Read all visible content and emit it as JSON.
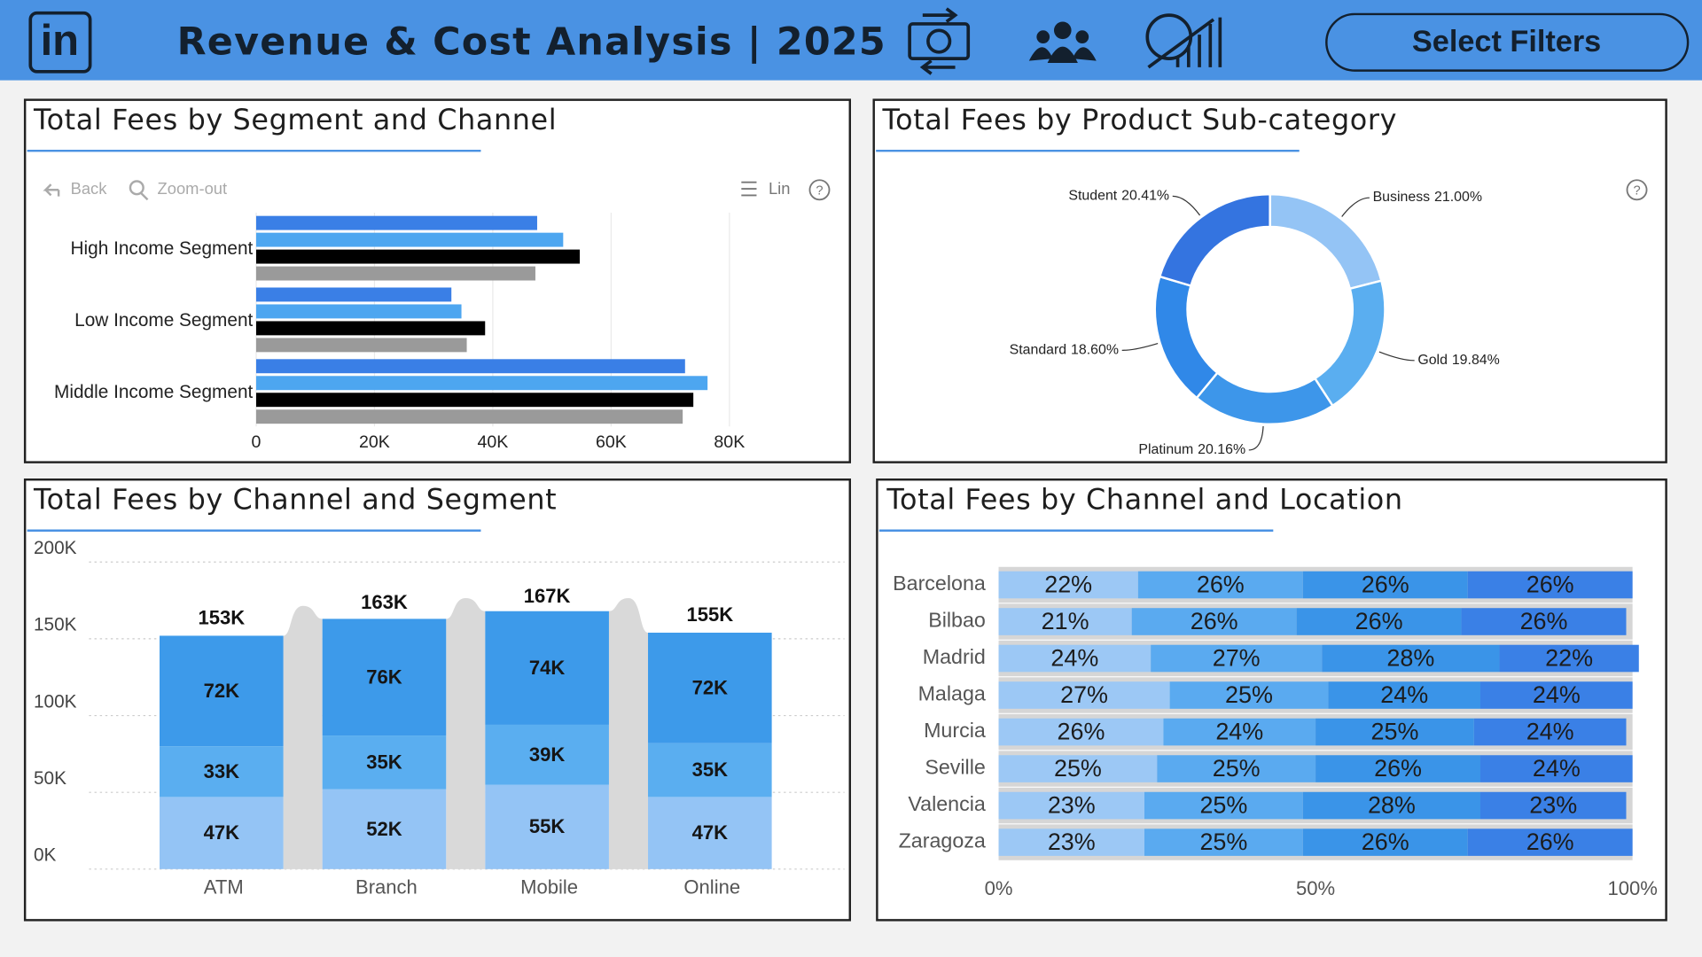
{
  "header": {
    "logo": "in",
    "title": "Revenue & Cost Analysis | 2025",
    "button": "Select Filters"
  },
  "chart_data": [
    {
      "type": "hbar",
      "title": "Total Fees by Segment and Channel",
      "toolbar": {
        "back": "Back",
        "zoom": "Zoom-out",
        "scale": "Lin",
        "help": "?"
      },
      "categories": [
        "High Income Segment",
        "Low Income Segment",
        "Middle Income Segment"
      ],
      "series": [
        {
          "color": "#3a7fe6",
          "values": [
            47500,
            33000,
            72500
          ]
        },
        {
          "color": "#4da6f0",
          "values": [
            51900,
            34700,
            76300
          ]
        },
        {
          "color": "#000000",
          "values": [
            54700,
            38700,
            73900
          ]
        },
        {
          "color": "#9a9a9a",
          "values": [
            47200,
            35600,
            72100
          ]
        }
      ],
      "xlim": [
        0,
        80000
      ],
      "xticks": [
        0,
        {
          "value": 20000,
          "label": "20K"
        },
        {
          "value": 40000,
          "label": "40K"
        },
        {
          "value": 60000,
          "label": "60K"
        },
        {
          "value": 80000,
          "label": "80K"
        }
      ],
      "grid": true
    },
    {
      "type": "donut",
      "title": "Total Fees by Product Sub-category",
      "help": "?",
      "categories": [
        "Business",
        "Gold",
        "Platinum",
        "Standard",
        "Student"
      ],
      "values": [
        21.0,
        19.84,
        20.16,
        18.6,
        20.41
      ],
      "value_labels": [
        "21.00%",
        "19.84%",
        "20.16%",
        "18.60%",
        "20.41%"
      ],
      "colors": [
        "#94c4f5",
        "#5aaef0",
        "#3d96ea",
        "#3088e8",
        "#3474e0"
      ]
    },
    {
      "type": "stacked_column",
      "title": "Total Fees by Channel and Segment",
      "categories": [
        "ATM",
        "Branch",
        "Mobile",
        "Online"
      ],
      "series": [
        {
          "color": "#94c4f5",
          "values": [
            47000,
            52000,
            55000,
            47000
          ],
          "value_labels": [
            "47K",
            "52K",
            "55K",
            "47K"
          ]
        },
        {
          "color": "#5aaef0",
          "values": [
            33000,
            35000,
            39000,
            35000
          ],
          "value_labels": [
            "33K",
            "35K",
            "39K",
            "35K"
          ]
        },
        {
          "color": "#3d9aea",
          "values": [
            72000,
            76000,
            74000,
            72000
          ],
          "value_labels": [
            "72K",
            "76K",
            "74K",
            "72K"
          ]
        }
      ],
      "totals": [
        153000,
        163000,
        167000,
        155000
      ],
      "total_labels": [
        "153K",
        "163K",
        "167K",
        "155K"
      ],
      "ylim": [
        0,
        200000
      ],
      "yticks": [
        {
          "value": 0,
          "label": "0K"
        },
        {
          "value": 50000,
          "label": "50K"
        },
        {
          "value": 100000,
          "label": "100K"
        },
        {
          "value": 150000,
          "label": "150K"
        },
        {
          "value": 200000,
          "label": "200K"
        }
      ],
      "grid": true
    },
    {
      "type": "stacked_hbar",
      "title": "Total Fees by Channel and Location",
      "categories": [
        "Barcelona",
        "Bilbao",
        "Madrid",
        "Malaga",
        "Murcia",
        "Seville",
        "Valencia",
        "Zaragoza"
      ],
      "series": [
        {
          "color": "#9cc8f5",
          "values": [
            22,
            21,
            24,
            27,
            26,
            25,
            23,
            23
          ],
          "value_labels": [
            "22%",
            "21%",
            "24%",
            "27%",
            "26%",
            "25%",
            "23%",
            "23%"
          ]
        },
        {
          "color": "#5aaaf0",
          "values": [
            26,
            26,
            27,
            25,
            24,
            25,
            25,
            25
          ],
          "value_labels": [
            "26%",
            "26%",
            "27%",
            "25%",
            "24%",
            "25%",
            "25%",
            "25%"
          ]
        },
        {
          "color": "#3a94e8",
          "values": [
            26,
            26,
            28,
            24,
            25,
            26,
            28,
            26
          ],
          "value_labels": [
            "26%",
            "26%",
            "28%",
            "24%",
            "25%",
            "26%",
            "28%",
            "26%"
          ]
        },
        {
          "color": "#3a80e6",
          "values": [
            26,
            26,
            22,
            24,
            24,
            24,
            23,
            26
          ],
          "value_labels": [
            "26%",
            "26%",
            "22%",
            "24%",
            "24%",
            "24%",
            "23%",
            "26%"
          ]
        }
      ],
      "xlim": [
        0,
        100
      ],
      "xticks": [
        {
          "value": 0,
          "label": "0%"
        },
        {
          "value": 50,
          "label": "50%"
        },
        {
          "value": 100,
          "label": "100%"
        }
      ]
    }
  ]
}
